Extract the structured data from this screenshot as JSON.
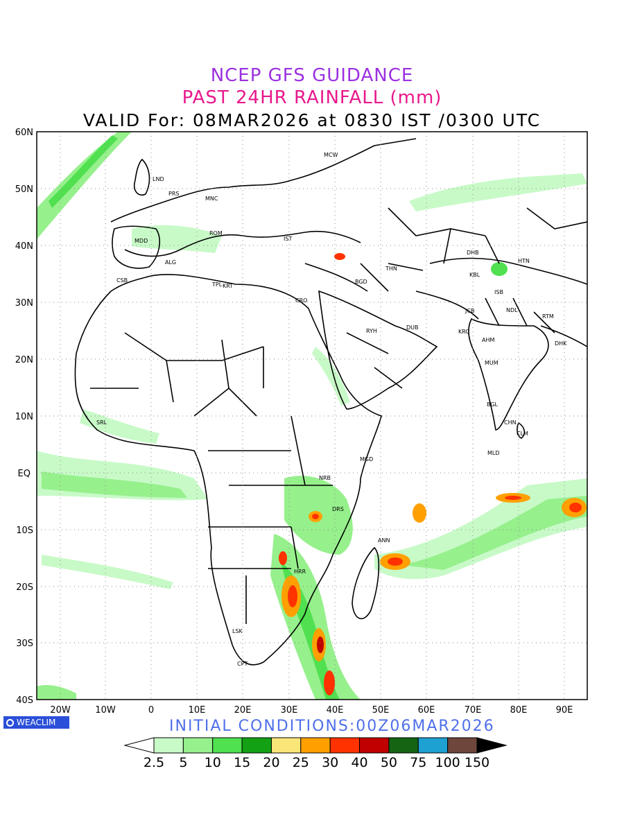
{
  "titles": {
    "line1": "NCEP GFS GUIDANCE",
    "line2": "PAST 24HR RAINFALL (mm)",
    "line3": "VALID For: 08MAR2026 at 0830 IST /0300 UTC"
  },
  "initial_conditions": "INITIAL CONDITIONS:00Z06MAR2026",
  "logo_text": "WEACLIM",
  "axes": {
    "lon_labels": [
      "20W",
      "10W",
      "0",
      "10E",
      "20E",
      "30E",
      "40E",
      "50E",
      "60E",
      "70E",
      "80E",
      "90E"
    ],
    "lat_labels": [
      "60N",
      "50N",
      "40N",
      "30N",
      "20N",
      "10N",
      "EQ",
      "10S",
      "20S",
      "30S",
      "40S"
    ]
  },
  "cities": [
    {
      "code": "MCW"
    },
    {
      "code": "LND"
    },
    {
      "code": "PRS"
    },
    {
      "code": "MNC"
    },
    {
      "code": "ROM"
    },
    {
      "code": "MDD"
    },
    {
      "code": "IST"
    },
    {
      "code": "ALG"
    },
    {
      "code": "CSB"
    },
    {
      "code": "TPL"
    },
    {
      "code": "KRT"
    },
    {
      "code": "CRO"
    },
    {
      "code": "BGD"
    },
    {
      "code": "THN"
    },
    {
      "code": "RYH"
    },
    {
      "code": "DUB"
    },
    {
      "code": "DHB"
    },
    {
      "code": "HTN"
    },
    {
      "code": "KBL"
    },
    {
      "code": "ISB"
    },
    {
      "code": "JCB"
    },
    {
      "code": "NDL"
    },
    {
      "code": "RTM"
    },
    {
      "code": "KRC"
    },
    {
      "code": "AHM"
    },
    {
      "code": "MUM"
    },
    {
      "code": "DHK"
    },
    {
      "code": "BGL"
    },
    {
      "code": "CHN"
    },
    {
      "code": "CLM"
    },
    {
      "code": "MLD"
    },
    {
      "code": "SRL"
    },
    {
      "code": "MGD"
    },
    {
      "code": "NRB"
    },
    {
      "code": "DRS"
    },
    {
      "code": "ANN"
    },
    {
      "code": "HRR"
    },
    {
      "code": "LSK"
    },
    {
      "code": "CPT"
    }
  ],
  "legend": {
    "colors": [
      "#c8fac8",
      "#96f08c",
      "#50e050",
      "#14a014",
      "#fae678",
      "#ffa000",
      "#ff3200",
      "#c00000",
      "#146414",
      "#1ea0d2",
      "#6e463c"
    ],
    "labels": [
      "2.5",
      "5",
      "10",
      "15",
      "20",
      "25",
      "30",
      "40",
      "50",
      "75",
      "100",
      "150"
    ]
  },
  "rain_colors": {
    "light": "#c8fac8",
    "light2": "#96f08c",
    "mid": "#50e050",
    "dark": "#14a014",
    "yellow": "#fae678",
    "orange": "#ffa000",
    "red": "#ff3200",
    "darkred": "#c00000"
  }
}
